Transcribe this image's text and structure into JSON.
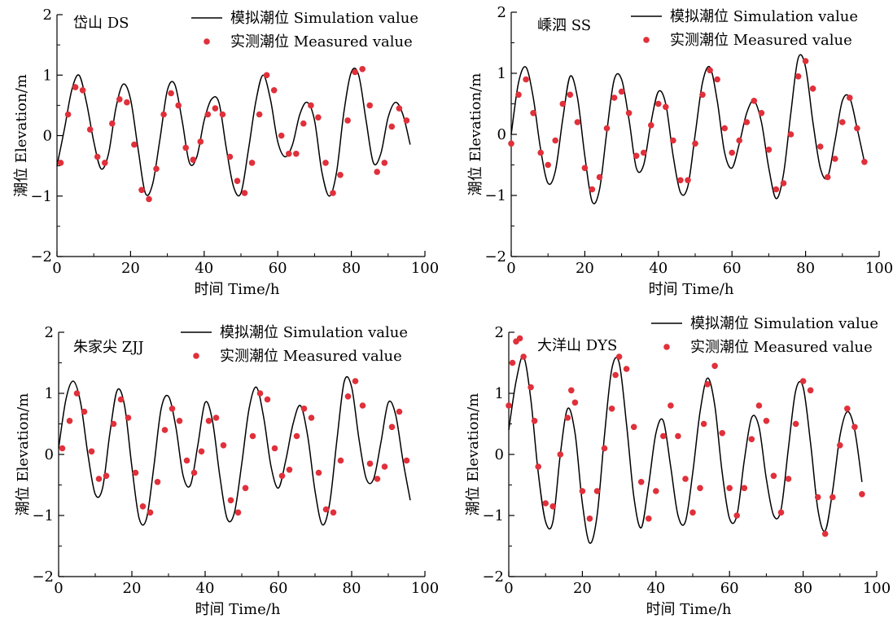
{
  "chart_data": [
    {
      "type": "line",
      "station": "岱山 DS",
      "xlabel": "时间 Time/h",
      "ylabel": "潮位 Elevation/m",
      "xlim": [
        0,
        100
      ],
      "ylim": [
        -2,
        2
      ],
      "xticks": [
        "0",
        "20",
        "40",
        "60",
        "80",
        "100"
      ],
      "yticks": [
        "2",
        "1",
        "0",
        "−1",
        "−2"
      ],
      "legend": {
        "line": "模拟潮位 Simulation value",
        "points": "实测潮位 Measured value",
        "position": "top-right"
      },
      "series": [
        {
          "name": "模拟潮位 Simulation value",
          "kind": "line",
          "color": "#000000",
          "x": [
            0,
            2,
            4,
            6,
            8,
            10,
            12,
            14,
            16,
            18,
            20,
            22,
            24,
            26,
            28,
            30,
            32,
            34,
            36,
            38,
            40,
            42,
            44,
            46,
            48,
            50,
            52,
            54,
            56,
            58,
            60,
            62,
            64,
            66,
            68,
            70,
            72,
            74,
            76,
            78,
            80,
            82,
            84,
            86,
            88,
            90,
            92,
            94,
            96
          ],
          "y": [
            -0.5,
            0.1,
            0.75,
            1.0,
            0.55,
            -0.1,
            -0.55,
            -0.3,
            0.45,
            0.85,
            0.6,
            -0.2,
            -0.95,
            -0.8,
            -0.05,
            0.75,
            0.85,
            0.25,
            -0.45,
            -0.35,
            0.25,
            0.6,
            0.55,
            -0.2,
            -0.85,
            -0.95,
            -0.25,
            0.55,
            1.0,
            0.6,
            -0.1,
            -0.35,
            -0.15,
            0.35,
            0.55,
            0.25,
            -0.6,
            -1.0,
            -0.6,
            0.4,
            1.05,
            1.0,
            0.25,
            -0.45,
            -0.3,
            0.3,
            0.55,
            0.35,
            -0.15
          ]
        },
        {
          "name": "实测潮位 Measured value",
          "kind": "scatter",
          "color": "#e0303a",
          "x": [
            1,
            3,
            5,
            7,
            9,
            11,
            13,
            15,
            17,
            19,
            21,
            23,
            25,
            27,
            29,
            31,
            33,
            35,
            37,
            39,
            41,
            43,
            45,
            47,
            49,
            51,
            53,
            55,
            57,
            59,
            61,
            63,
            65,
            67,
            69,
            71,
            73,
            75,
            77,
            79,
            81,
            83,
            85,
            87,
            89,
            91,
            93,
            95
          ],
          "y": [
            -0.45,
            0.35,
            0.8,
            0.75,
            0.1,
            -0.35,
            -0.45,
            0.2,
            0.6,
            0.55,
            -0.15,
            -0.9,
            -1.05,
            -0.55,
            0.35,
            0.7,
            0.5,
            -0.2,
            -0.4,
            -0.1,
            0.35,
            0.45,
            0.35,
            -0.35,
            -0.75,
            -0.95,
            -0.45,
            0.35,
            1.0,
            0.75,
            0.0,
            -0.3,
            -0.3,
            0.2,
            0.5,
            0.3,
            -0.45,
            -0.95,
            -0.65,
            0.25,
            1.05,
            1.1,
            0.5,
            -0.6,
            -0.45,
            0.15,
            0.45,
            0.25
          ]
        }
      ]
    },
    {
      "type": "line",
      "station": "嵊泗 SS",
      "xlabel": "时间 Time/h",
      "ylabel": "潮位 Elevation/m",
      "xlim": [
        0,
        100
      ],
      "ylim": [
        -2,
        2
      ],
      "xticks": [
        "0",
        "20",
        "40",
        "60",
        "80",
        "100"
      ],
      "yticks": [
        "2",
        "1",
        "0",
        "−1",
        "−2"
      ],
      "legend": {
        "line": "模拟潮位 Simulation value",
        "points": "实测潮位 Measured value",
        "position": "top-right"
      },
      "series": [
        {
          "name": "模拟潮位 Simulation value",
          "kind": "line",
          "color": "#000000",
          "x": [
            0,
            2,
            4,
            6,
            8,
            10,
            12,
            14,
            16,
            18,
            20,
            22,
            24,
            26,
            28,
            30,
            32,
            34,
            36,
            38,
            40,
            42,
            44,
            46,
            48,
            50,
            52,
            54,
            56,
            58,
            60,
            62,
            64,
            66,
            68,
            70,
            72,
            74,
            76,
            78,
            80,
            82,
            84,
            86,
            88,
            90,
            92,
            94,
            96
          ],
          "y": [
            0.0,
            0.85,
            1.1,
            0.6,
            -0.25,
            -0.8,
            -0.6,
            0.25,
            0.95,
            0.6,
            -0.35,
            -1.1,
            -0.9,
            0.05,
            0.9,
            0.9,
            0.25,
            -0.55,
            -0.5,
            0.2,
            0.7,
            0.5,
            -0.35,
            -0.95,
            -0.85,
            0.0,
            0.85,
            1.1,
            0.55,
            -0.3,
            -0.55,
            -0.15,
            0.35,
            0.55,
            0.2,
            -0.55,
            -1.05,
            -0.65,
            0.35,
            1.25,
            1.1,
            0.2,
            -0.55,
            -0.7,
            -0.1,
            0.55,
            0.6,
            0.1,
            -0.45
          ]
        },
        {
          "name": "实测潮位 Measured value",
          "kind": "scatter",
          "color": "#e0303a",
          "x": [
            0,
            2,
            4,
            6,
            8,
            10,
            12,
            14,
            16,
            18,
            20,
            22,
            24,
            26,
            28,
            30,
            32,
            34,
            36,
            38,
            40,
            42,
            44,
            46,
            48,
            50,
            52,
            54,
            56,
            58,
            60,
            62,
            64,
            66,
            68,
            70,
            72,
            74,
            76,
            78,
            80,
            82,
            84,
            86,
            88,
            90,
            92,
            94,
            96
          ],
          "y": [
            -0.15,
            0.65,
            0.9,
            0.35,
            -0.3,
            -0.5,
            -0.1,
            0.5,
            0.65,
            0.2,
            -0.55,
            -0.9,
            -0.7,
            0.1,
            0.6,
            0.7,
            0.35,
            -0.35,
            -0.3,
            0.15,
            0.5,
            0.45,
            -0.1,
            -0.75,
            -0.75,
            -0.15,
            0.65,
            1.05,
            0.9,
            0.1,
            -0.3,
            -0.1,
            0.2,
            0.55,
            0.35,
            -0.25,
            -0.9,
            -0.8,
            0.0,
            0.95,
            1.2,
            0.75,
            -0.2,
            -0.7,
            -0.4,
            0.2,
            0.6,
            0.1,
            -0.45
          ]
        }
      ]
    },
    {
      "type": "line",
      "station": "朱家尖 ZJJ",
      "xlabel": "时间 Time/h",
      "ylabel": "潮位 Elevation/m",
      "xlim": [
        0,
        100
      ],
      "ylim": [
        -2,
        2
      ],
      "xticks": [
        "0",
        "20",
        "40",
        "60",
        "80",
        "100"
      ],
      "yticks": [
        "2",
        "1",
        "0",
        "−1",
        "−2"
      ],
      "legend": {
        "line": "模拟潮位 Simulation value",
        "points": "实测潮位 Measured value",
        "position": "top-right"
      },
      "series": [
        {
          "name": "模拟潮位 Simulation value",
          "kind": "line",
          "color": "#000000",
          "x": [
            0,
            2,
            4,
            6,
            8,
            10,
            12,
            14,
            16,
            18,
            20,
            22,
            24,
            26,
            28,
            30,
            32,
            34,
            36,
            38,
            40,
            42,
            44,
            46,
            48,
            50,
            52,
            54,
            56,
            58,
            60,
            62,
            64,
            66,
            68,
            70,
            72,
            74,
            76,
            78,
            80,
            82,
            84,
            86,
            88,
            90,
            92,
            94,
            96
          ],
          "y": [
            0.1,
            0.9,
            1.2,
            0.85,
            0.0,
            -0.65,
            -0.55,
            0.35,
            1.05,
            0.8,
            -0.2,
            -1.05,
            -1.05,
            -0.2,
            0.75,
            0.95,
            0.45,
            -0.35,
            -0.5,
            0.15,
            0.85,
            0.55,
            -0.35,
            -1.05,
            -0.95,
            -0.15,
            0.75,
            1.1,
            0.6,
            -0.2,
            -0.55,
            -0.1,
            0.5,
            0.8,
            0.3,
            -0.6,
            -1.15,
            -0.8,
            0.25,
            1.2,
            1.1,
            0.25,
            -0.4,
            -0.4,
            0.2,
            0.85,
            0.65,
            -0.1,
            -0.75
          ]
        },
        {
          "name": "实测潮位 Measured value",
          "kind": "scatter",
          "color": "#e0303a",
          "x": [
            1,
            3,
            5,
            7,
            9,
            11,
            13,
            15,
            17,
            19,
            21,
            23,
            25,
            27,
            29,
            31,
            33,
            35,
            37,
            39,
            41,
            43,
            45,
            47,
            49,
            51,
            53,
            55,
            57,
            59,
            61,
            63,
            65,
            67,
            69,
            71,
            73,
            75,
            77,
            79,
            81,
            83,
            85,
            87,
            89,
            91,
            93,
            95
          ],
          "y": [
            0.1,
            0.55,
            1.0,
            0.7,
            0.05,
            -0.4,
            -0.35,
            0.5,
            0.9,
            0.6,
            -0.3,
            -0.85,
            -0.95,
            -0.45,
            0.4,
            0.75,
            0.55,
            -0.1,
            -0.3,
            0.05,
            0.55,
            0.6,
            0.15,
            -0.75,
            -0.95,
            -0.55,
            0.3,
            1.0,
            0.9,
            0.1,
            -0.35,
            -0.25,
            0.3,
            0.75,
            0.6,
            -0.3,
            -0.9,
            -0.95,
            -0.1,
            0.95,
            1.2,
            0.8,
            -0.15,
            -0.4,
            -0.2,
            0.45,
            0.7,
            -0.1
          ]
        }
      ]
    },
    {
      "type": "line",
      "station": "大洋山 DYS",
      "xlabel": "时间 Time/h",
      "ylabel": "潮位 Elevation/m",
      "xlim": [
        0,
        100
      ],
      "ylim": [
        -2,
        2
      ],
      "xticks": [
        "0",
        "20",
        "40",
        "60",
        "80",
        "100"
      ],
      "yticks": [
        "2",
        "1",
        "0",
        "−1",
        "−2"
      ],
      "legend": {
        "line": "模拟潮位 Simulation value",
        "points": "实测潮位 Measured value",
        "position": "top-right"
      },
      "series": [
        {
          "name": "模拟潮位 Simulation value",
          "kind": "line",
          "color": "#000000",
          "x": [
            0,
            2,
            4,
            6,
            8,
            10,
            12,
            14,
            16,
            18,
            20,
            22,
            24,
            26,
            28,
            30,
            32,
            34,
            36,
            38,
            40,
            42,
            44,
            46,
            48,
            50,
            52,
            54,
            56,
            58,
            60,
            62,
            64,
            66,
            68,
            70,
            72,
            74,
            76,
            78,
            80,
            82,
            84,
            86,
            88,
            90,
            92,
            94,
            96
          ],
          "y": [
            0.4,
            1.2,
            1.6,
            0.9,
            -0.3,
            -1.1,
            -1.1,
            0.0,
            0.75,
            0.35,
            -0.8,
            -1.45,
            -1.0,
            0.3,
            1.4,
            1.5,
            0.5,
            -0.7,
            -1.2,
            -0.5,
            0.35,
            0.55,
            -0.2,
            -1.0,
            -1.1,
            -0.3,
            0.7,
            1.25,
            0.8,
            -0.3,
            -1.05,
            -1.0,
            -0.1,
            0.6,
            0.45,
            -0.4,
            -1.0,
            -0.9,
            0.1,
            1.05,
            1.1,
            0.2,
            -0.9,
            -1.25,
            -0.6,
            0.3,
            0.7,
            0.4,
            -0.45
          ]
        },
        {
          "name": "实测潮位 Measured value",
          "kind": "scatter",
          "color": "#e0303a",
          "x": [
            0,
            1,
            2,
            3,
            4,
            6,
            7,
            8,
            10,
            12,
            14,
            16,
            17,
            18,
            20,
            22,
            24,
            26,
            28,
            29,
            30,
            32,
            34,
            36,
            38,
            40,
            42,
            44,
            46,
            48,
            50,
            52,
            53,
            54,
            56,
            58,
            60,
            62,
            64,
            66,
            68,
            70,
            72,
            74,
            76,
            78,
            80,
            82,
            84,
            86,
            88,
            90,
            92,
            94,
            96
          ],
          "y": [
            0.8,
            1.5,
            1.85,
            1.9,
            1.6,
            1.1,
            0.55,
            -0.2,
            -0.8,
            -0.85,
            0.0,
            0.6,
            1.05,
            0.85,
            -0.6,
            -1.05,
            -0.6,
            0.1,
            0.75,
            1.3,
            1.6,
            1.4,
            0.45,
            -0.45,
            -1.05,
            -0.6,
            0.3,
            0.8,
            0.3,
            -0.4,
            -0.95,
            -0.55,
            0.5,
            1.15,
            1.45,
            0.35,
            -0.55,
            -1.0,
            -0.55,
            0.25,
            0.8,
            0.55,
            -0.35,
            -0.95,
            -0.4,
            0.5,
            1.2,
            1.05,
            -0.7,
            -1.3,
            -0.7,
            0.15,
            0.75,
            0.45,
            -0.65
          ]
        }
      ]
    }
  ]
}
